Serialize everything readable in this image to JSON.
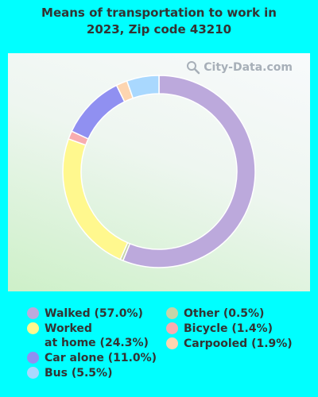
{
  "title_lines": [
    "Means of transportation to work in",
    "2023, Zip code 43210"
  ],
  "watermark": "City-Data.com",
  "chart_data": {
    "type": "pie",
    "title": "Means of transportation to work in 2023, Zip code 43210",
    "donut": true,
    "categories": [
      "Walked",
      "Other",
      "Worked at home",
      "Bicycle",
      "Car alone",
      "Carpooled",
      "Bus"
    ],
    "values": [
      57.0,
      0.5,
      24.3,
      1.4,
      11.0,
      1.9,
      5.5
    ],
    "colors": [
      "#bca9dc",
      "#c6d4a8",
      "#fff88e",
      "#f7adb0",
      "#9090f1",
      "#fdd5b0",
      "#a9d8fe"
    ]
  },
  "legend": {
    "left": [
      {
        "lines": [
          "Walked (57.0%)"
        ],
        "color": "#bca9dc"
      },
      {
        "lines": [
          "Worked",
          "at home (24.3%)"
        ],
        "color": "#fff88e"
      },
      {
        "lines": [
          "Car alone (11.0%)"
        ],
        "color": "#9090f1"
      },
      {
        "lines": [
          "Bus (5.5%)"
        ],
        "color": "#a9d8fe"
      }
    ],
    "right": [
      {
        "lines": [
          "Other (0.5%)"
        ],
        "color": "#c6d4a8"
      },
      {
        "lines": [
          "Bicycle (1.4%)"
        ],
        "color": "#f7adb0"
      },
      {
        "lines": [
          "Carpooled (1.9%)"
        ],
        "color": "#fdd5b0"
      }
    ]
  }
}
